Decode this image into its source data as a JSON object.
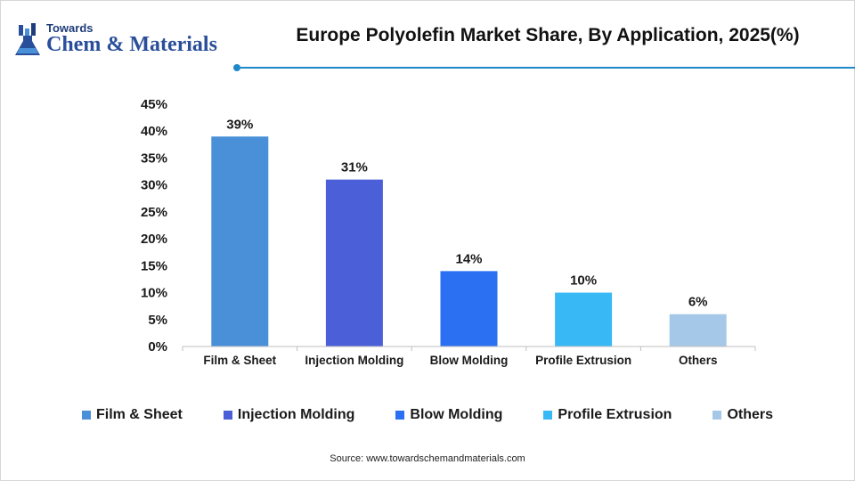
{
  "brand": {
    "line1": "Towards",
    "line2": "Chem & Materials"
  },
  "header": {
    "title": "Europe Polyolefin Market Share, By Application, 2025(%)"
  },
  "chart_data": {
    "type": "bar",
    "title": "Europe Polyolefin Market Share, By Application, 2025(%)",
    "xlabel": "",
    "ylabel": "",
    "categories": [
      "Film & Sheet",
      "Injection Molding",
      "Blow Molding",
      "Profile Extrusion",
      "Others"
    ],
    "values": [
      39,
      31,
      14,
      10,
      6
    ],
    "data_labels": [
      "39%",
      "31%",
      "14%",
      "10%",
      "6%"
    ],
    "colors": [
      "#4a90d9",
      "#4a5fd8",
      "#2b6ff2",
      "#38b8f5",
      "#a6c8e8"
    ],
    "ylim": [
      0,
      45
    ],
    "yticks": [
      0,
      5,
      10,
      15,
      20,
      25,
      30,
      35,
      40,
      45
    ],
    "ytick_labels": [
      "0%",
      "5%",
      "10%",
      "15%",
      "20%",
      "25%",
      "30%",
      "35%",
      "40%",
      "45%"
    ],
    "grid": false,
    "legend_position": "bottom"
  },
  "legend": {
    "items": [
      "Film & Sheet",
      "Injection Molding",
      "Blow Molding",
      "Profile Extrusion",
      "Others"
    ]
  },
  "footer": {
    "source": "Source: www.towardschemandmaterials.com"
  },
  "theme": {
    "accent": "#1e88c9"
  }
}
